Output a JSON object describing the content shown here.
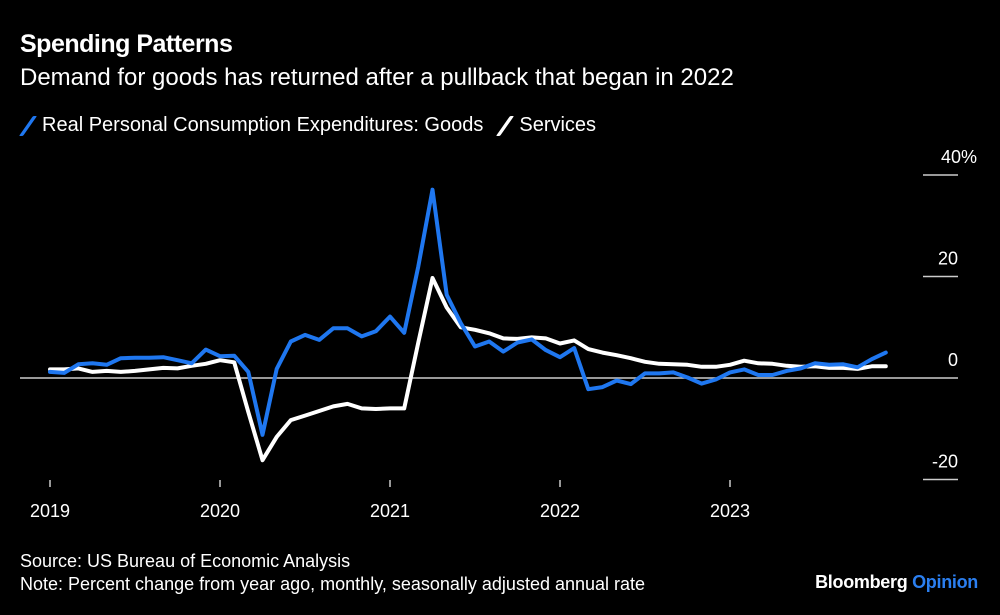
{
  "title": "Spending Patterns",
  "subtitle": "Demand for goods has returned after a pullback that began in 2022",
  "source": "Source: US Bureau of Economic Analysis",
  "note": "Note: Percent change from year ago, monthly, seasonally adjusted annual rate",
  "logo": {
    "brand": "Bloomberg",
    "section": "Opinion"
  },
  "chart_data": {
    "type": "line",
    "xlabel": "",
    "ylabel": "",
    "x_start": "2019-01",
    "x_frequency": "monthly",
    "x_ticks": [
      "2019",
      "2020",
      "2021",
      "2022",
      "2023"
    ],
    "y_ticks": [
      {
        "value": 40,
        "label": "40%"
      },
      {
        "value": 20,
        "label": "20"
      },
      {
        "value": 0,
        "label": "0"
      },
      {
        "value": -20,
        "label": "-20"
      }
    ],
    "ylim": [
      -20,
      40
    ],
    "grid": false,
    "legend_position": "top-left",
    "series": [
      {
        "name": "Real Personal Consumption Expenditures: Goods",
        "color": "#1f77f0",
        "values": [
          1.2,
          1.0,
          2.7,
          2.9,
          2.6,
          3.9,
          4.0,
          4.0,
          4.1,
          3.5,
          2.9,
          5.6,
          4.3,
          4.4,
          1.2,
          -11.2,
          1.8,
          7.2,
          8.5,
          7.5,
          9.8,
          9.8,
          8.2,
          9.2,
          12.1,
          8.9,
          22.0,
          37.1,
          16.4,
          10.8,
          6.2,
          7.2,
          5.2,
          7.0,
          7.6,
          5.5,
          4.1,
          5.9,
          -2.2,
          -1.8,
          -0.5,
          -1.2,
          0.9,
          0.9,
          1.1,
          0.1,
          -1.1,
          -0.3,
          1.1,
          1.7,
          0.6,
          0.6,
          1.4,
          1.9,
          2.9,
          2.6,
          2.7,
          2.1,
          3.7,
          5.0
        ]
      },
      {
        "name": "Services",
        "color": "#ffffff",
        "values": [
          1.7,
          1.7,
          1.9,
          1.2,
          1.4,
          1.2,
          1.4,
          1.7,
          2.0,
          1.9,
          2.4,
          2.8,
          3.5,
          3.1,
          -6.7,
          -16.2,
          -11.6,
          -8.3,
          -7.4,
          -6.5,
          -5.6,
          -5.1,
          -6.0,
          -6.1,
          -6.0,
          -6.0,
          7.0,
          19.7,
          13.9,
          10.0,
          9.5,
          8.8,
          7.8,
          7.7,
          8.0,
          7.8,
          6.8,
          7.4,
          5.7,
          5.0,
          4.5,
          3.9,
          3.2,
          2.8,
          2.7,
          2.6,
          2.2,
          2.2,
          2.6,
          3.4,
          2.9,
          2.8,
          2.4,
          2.2,
          2.3,
          2.0,
          2.0,
          1.8,
          2.3,
          2.3
        ]
      }
    ]
  }
}
